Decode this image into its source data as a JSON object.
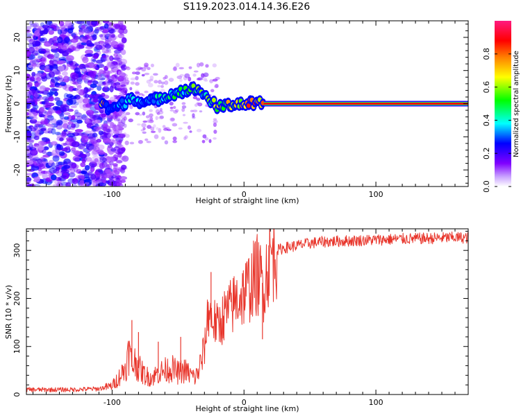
{
  "title": "S119.2023.014.14.36.E26",
  "chart_data": [
    {
      "type": "heatmap",
      "xlabel": "Height of straight line (km)",
      "ylabel": "Frequency (Hz)",
      "xlim": [
        -165,
        170
      ],
      "ylim": [
        -25,
        25
      ],
      "x_ticks": [
        -100,
        0,
        100
      ],
      "y_ticks": [
        -20,
        -10,
        0,
        10,
        20
      ],
      "grid": false,
      "colorbar": {
        "label": "Normalized spectral amplitude",
        "range": [
          0.0,
          1.0
        ],
        "ticks": [
          0.0,
          0.2,
          0.4,
          0.6,
          0.8
        ],
        "tick_labels": [
          "0.0",
          "0.2",
          "0.4",
          "0.6",
          "0.8"
        ],
        "colormap": [
          "#ffffff",
          "#8000ff",
          "#0000ff",
          "#00ffff",
          "#00ff00",
          "#ffff00",
          "#ff8000",
          "#ff0000",
          "#ff00aa"
        ]
      },
      "ridge": [
        {
          "x": -105,
          "y": -1.5,
          "amplitude": 0.3
        },
        {
          "x": -95,
          "y": -1,
          "amplitude": 0.35
        },
        {
          "x": -85,
          "y": 2,
          "amplitude": 0.4
        },
        {
          "x": -75,
          "y": 0,
          "amplitude": 0.35
        },
        {
          "x": -65,
          "y": 1.5,
          "amplitude": 0.4
        },
        {
          "x": -55,
          "y": 3,
          "amplitude": 0.45
        },
        {
          "x": -45,
          "y": 4,
          "amplitude": 0.5
        },
        {
          "x": -35,
          "y": 4.5,
          "amplitude": 0.55
        },
        {
          "x": -30,
          "y": 2.5,
          "amplitude": 0.5
        },
        {
          "x": -25,
          "y": 1,
          "amplitude": 0.55
        },
        {
          "x": -20,
          "y": -1.5,
          "amplitude": 0.6
        },
        {
          "x": -15,
          "y": -0.5,
          "amplitude": 0.65
        },
        {
          "x": -5,
          "y": 0,
          "amplitude": 0.7
        },
        {
          "x": 5,
          "y": 0,
          "amplitude": 0.8
        },
        {
          "x": 15,
          "y": 0,
          "amplitude": 0.85
        },
        {
          "x": 50,
          "y": 0,
          "amplitude": 0.9
        },
        {
          "x": 100,
          "y": 0,
          "amplitude": 0.9
        },
        {
          "x": 170,
          "y": 0,
          "amplitude": 0.9
        }
      ],
      "noise_region_x": [
        -165,
        -100
      ]
    },
    {
      "type": "line",
      "xlabel": "Height of straight line (km)",
      "ylabel": "SNR (10 * v/v)",
      "xlim": [
        -165,
        170
      ],
      "ylim": [
        0,
        345
      ],
      "x_ticks": [
        -100,
        0,
        100
      ],
      "y_ticks": [
        0,
        100,
        200,
        300
      ],
      "grid": false,
      "series": [
        {
          "color": "#e8352b",
          "x": [
            -165,
            -150,
            -130,
            -110,
            -100,
            -95,
            -90,
            -87,
            -85,
            -82,
            -80,
            -75,
            -70,
            -65,
            -60,
            -55,
            -50,
            -45,
            -40,
            -37,
            -35,
            -30,
            -27,
            -25,
            -22,
            -20,
            -15,
            -10,
            -5,
            0,
            5,
            10,
            13,
            15,
            18,
            20,
            25,
            30,
            40,
            50,
            60,
            80,
            100,
            120,
            140,
            160,
            170
          ],
          "y": [
            10,
            10,
            10,
            12,
            18,
            35,
            55,
            90,
            60,
            70,
            55,
            40,
            35,
            45,
            50,
            55,
            45,
            50,
            40,
            35,
            45,
            90,
            180,
            160,
            150,
            140,
            165,
            180,
            200,
            210,
            230,
            250,
            235,
            230,
            270,
            285,
            300,
            305,
            310,
            315,
            318,
            320,
            322,
            324,
            325,
            327,
            326
          ]
        }
      ],
      "spikes": [
        {
          "x": -85,
          "y": 155
        },
        {
          "x": -80,
          "y": 130
        },
        {
          "x": -65,
          "y": 110
        },
        {
          "x": -48,
          "y": 120
        },
        {
          "x": -25,
          "y": 255
        },
        {
          "x": 14,
          "y": 115
        }
      ]
    }
  ]
}
